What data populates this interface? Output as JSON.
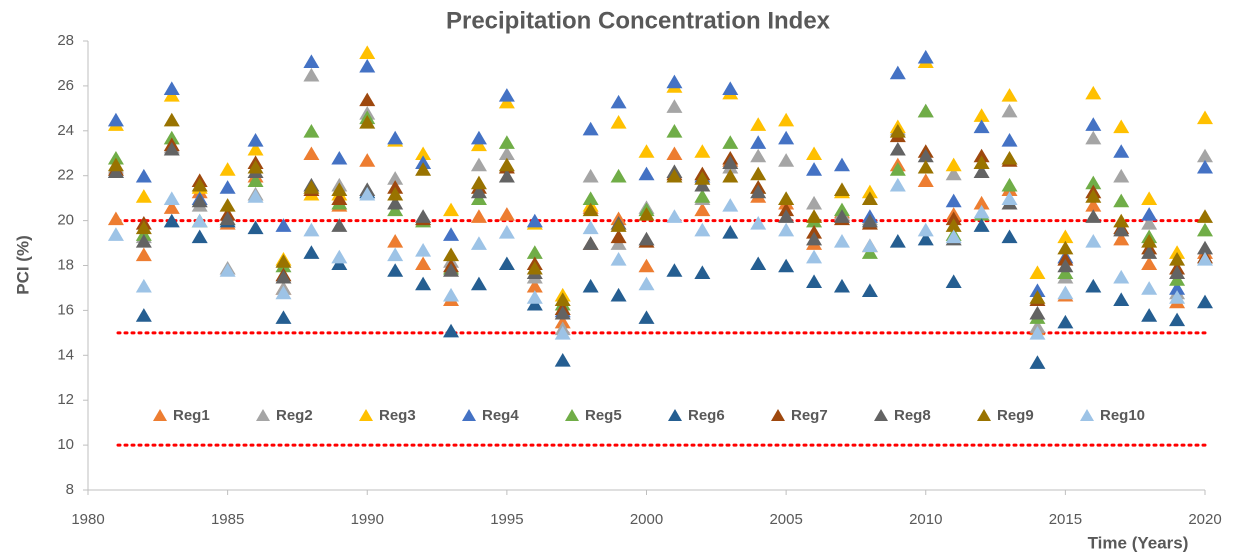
{
  "chart_data": {
    "type": "scatter",
    "title": "Precipitation Concentration Index",
    "x_label": "Time (Years)",
    "y_label": "PCI (%)",
    "x": [
      1981,
      1982,
      1983,
      1984,
      1985,
      1986,
      1987,
      1988,
      1989,
      1990,
      1991,
      1992,
      1993,
      1994,
      1995,
      1996,
      1997,
      1998,
      1999,
      2000,
      2001,
      2002,
      2003,
      2004,
      2005,
      2006,
      2007,
      2008,
      2009,
      2010,
      2011,
      2012,
      2013,
      2014,
      2015,
      2016,
      2017,
      2018,
      2019,
      2020
    ],
    "series": [
      {
        "name": "Reg1",
        "color": "#ED7D31",
        "values": [
          20.1,
          18.5,
          20.6,
          21.3,
          19.9,
          22.0,
          17.0,
          23.0,
          20.7,
          22.7,
          19.1,
          18.1,
          16.5,
          20.2,
          20.3,
          17.1,
          15.5,
          20.6,
          20.1,
          18.0,
          23.0,
          20.5,
          22.7,
          21.1,
          20.8,
          19.0,
          20.4,
          18.9,
          22.5,
          21.8,
          20.3,
          20.8,
          21.4,
          15.2,
          16.7,
          20.7,
          19.2,
          18.1,
          16.4,
          18.6
        ]
      },
      {
        "name": "Reg2",
        "color": "#A5A5A5",
        "values": [
          22.4,
          19.3,
          23.3,
          20.7,
          17.9,
          21.2,
          17.0,
          26.5,
          21.6,
          24.8,
          21.9,
          20.1,
          18.2,
          22.5,
          23.0,
          17.5,
          15.2,
          22.0,
          19.0,
          20.6,
          25.1,
          21.0,
          22.4,
          22.9,
          22.7,
          20.8,
          20.3,
          20.1,
          24.1,
          24.9,
          22.1,
          22.6,
          24.9,
          15.3,
          17.5,
          23.7,
          22.0,
          19.9,
          16.8,
          22.9
        ]
      },
      {
        "name": "Reg3",
        "color": "#FFC000",
        "values": [
          24.3,
          21.1,
          25.6,
          21.5,
          22.3,
          23.2,
          18.3,
          21.2,
          21.2,
          27.5,
          23.6,
          23.0,
          20.5,
          23.4,
          25.3,
          19.9,
          16.7,
          20.7,
          24.4,
          23.1,
          26.0,
          23.1,
          25.7,
          24.3,
          24.5,
          23.0,
          21.3,
          21.3,
          24.2,
          27.1,
          22.5,
          24.7,
          25.6,
          17.7,
          19.3,
          25.7,
          24.2,
          21.0,
          18.6,
          24.6
        ]
      },
      {
        "name": "Reg4",
        "color": "#4472C4",
        "values": [
          24.5,
          22.0,
          25.9,
          21.0,
          21.5,
          23.6,
          19.8,
          27.1,
          22.8,
          26.9,
          23.7,
          22.6,
          19.4,
          23.7,
          25.6,
          20.0,
          16.0,
          24.1,
          25.3,
          22.1,
          26.2,
          22.0,
          25.9,
          23.5,
          23.7,
          22.3,
          22.5,
          20.2,
          26.6,
          27.3,
          20.9,
          24.2,
          23.6,
          16.9,
          18.4,
          24.3,
          23.1,
          20.3,
          17.0,
          22.4
        ]
      },
      {
        "name": "Reg5",
        "color": "#70AD47",
        "values": [
          22.8,
          19.4,
          23.7,
          20.0,
          20.1,
          21.8,
          18.0,
          24.0,
          20.8,
          24.6,
          20.5,
          20.0,
          17.9,
          21.0,
          23.5,
          18.6,
          16.3,
          21.0,
          22.0,
          20.5,
          24.0,
          21.1,
          23.5,
          21.5,
          21.0,
          20.0,
          20.5,
          18.6,
          22.3,
          24.9,
          19.4,
          20.3,
          21.6,
          15.7,
          17.7,
          21.7,
          20.9,
          19.3,
          17.4,
          19.6
        ]
      },
      {
        "name": "Reg6",
        "color": "#255E91",
        "values": [
          22.2,
          15.8,
          20.0,
          19.3,
          20.0,
          19.7,
          15.7,
          18.6,
          18.1,
          21.3,
          17.8,
          17.2,
          15.1,
          17.2,
          18.1,
          16.3,
          13.8,
          17.1,
          16.7,
          15.7,
          17.8,
          17.7,
          19.5,
          18.1,
          18.0,
          17.3,
          17.1,
          16.9,
          19.1,
          19.2,
          17.3,
          19.8,
          19.3,
          13.7,
          15.5,
          17.1,
          16.5,
          15.8,
          15.6,
          16.4
        ]
      },
      {
        "name": "Reg7",
        "color": "#9E480E",
        "values": [
          22.3,
          19.9,
          23.4,
          21.8,
          20.3,
          22.6,
          17.6,
          21.4,
          21.0,
          25.4,
          21.5,
          20.1,
          18.0,
          21.5,
          22.4,
          18.1,
          16.1,
          19.0,
          19.3,
          19.1,
          22.1,
          22.1,
          22.8,
          21.5,
          20.5,
          19.5,
          20.1,
          19.9,
          23.8,
          23.1,
          20.1,
          22.9,
          22.7,
          16.5,
          18.3,
          21.3,
          19.7,
          18.8,
          17.9,
          18.4
        ]
      },
      {
        "name": "Reg8",
        "color": "#636363",
        "values": [
          22.2,
          19.1,
          23.2,
          20.9,
          20.1,
          22.2,
          17.5,
          21.6,
          19.8,
          21.4,
          20.8,
          20.2,
          17.8,
          21.3,
          22.0,
          17.7,
          15.9,
          19.0,
          19.9,
          19.2,
          22.2,
          21.6,
          22.6,
          21.3,
          20.2,
          19.2,
          20.2,
          20.0,
          23.2,
          22.9,
          19.2,
          22.2,
          20.8,
          15.9,
          18.0,
          20.2,
          19.6,
          18.6,
          17.7,
          18.8
        ]
      },
      {
        "name": "Reg9",
        "color": "#997300",
        "values": [
          22.5,
          19.7,
          24.5,
          21.6,
          20.7,
          22.4,
          18.2,
          21.5,
          21.4,
          24.4,
          21.2,
          22.3,
          18.5,
          21.7,
          22.5,
          17.9,
          16.5,
          20.5,
          19.8,
          20.3,
          22.0,
          21.9,
          22.0,
          22.1,
          21.0,
          20.2,
          21.4,
          21.0,
          24.0,
          22.4,
          19.8,
          22.6,
          22.8,
          16.6,
          18.8,
          21.1,
          20.0,
          19.1,
          18.3,
          20.2
        ]
      },
      {
        "name": "Reg10",
        "color": "#9DC3E6",
        "values": [
          19.4,
          17.1,
          21.0,
          20.0,
          17.8,
          21.1,
          16.8,
          19.6,
          18.4,
          21.2,
          18.5,
          18.7,
          16.7,
          19.0,
          19.5,
          16.6,
          15.0,
          19.7,
          18.3,
          17.2,
          20.2,
          19.6,
          20.7,
          19.9,
          19.6,
          18.4,
          19.1,
          18.9,
          21.6,
          19.6,
          19.3,
          20.4,
          21.0,
          15.0,
          16.8,
          19.1,
          17.5,
          17.0,
          16.6,
          18.3
        ]
      }
    ],
    "xlim": [
      1980,
      2020
    ],
    "xticks": [
      1980,
      1985,
      1990,
      1995,
      2000,
      2005,
      2010,
      2015,
      2020
    ],
    "ylim": [
      8,
      28
    ],
    "yticks": [
      8,
      10,
      12,
      14,
      16,
      18,
      20,
      22,
      24,
      26,
      28
    ],
    "reference_lines": [
      10,
      15,
      20
    ],
    "reference_color": "#FF0000",
    "legend": "lower center"
  }
}
